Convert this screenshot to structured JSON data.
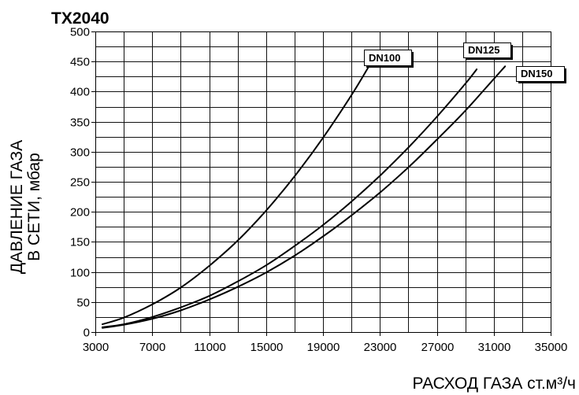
{
  "chart_data": {
    "type": "line",
    "title": "TX2040",
    "xlabel": "РАСХОД ГАЗА ст.м³/ч",
    "ylabel": [
      "ДАВЛЕНИЕ ГАЗА",
      "В СЕТИ, мбар"
    ],
    "xlim": [
      3000,
      35000
    ],
    "ylim": [
      0,
      500
    ],
    "xticks": [
      3000,
      7000,
      11000,
      15000,
      19000,
      23000,
      27000,
      31000,
      35000
    ],
    "yticks": [
      0,
      50,
      100,
      150,
      200,
      250,
      300,
      350,
      400,
      450,
      500
    ],
    "grid": true,
    "legend": "top-right",
    "colors": {
      "line": "#000000",
      "grid": "#111111",
      "background": "#ffffff"
    },
    "series": [
      {
        "name": "DN100",
        "x": [
          3500,
          5000,
          7000,
          9000,
          11000,
          13000,
          15000,
          17000,
          19000,
          21000,
          22200
        ],
        "y": [
          13,
          24,
          46,
          74,
          110,
          152,
          202,
          259,
          323,
          394,
          441
        ]
      },
      {
        "name": "DN125",
        "x": [
          3500,
          5000,
          7000,
          9000,
          11000,
          13000,
          15000,
          17000,
          19000,
          21000,
          23000,
          25000,
          27000,
          29000,
          29800
        ],
        "y": [
          8,
          13,
          25,
          41,
          60,
          84,
          111,
          143,
          178,
          217,
          260,
          307,
          358,
          413,
          437
        ]
      },
      {
        "name": "DN150",
        "x": [
          3500,
          5000,
          7000,
          9000,
          11000,
          13000,
          15000,
          17000,
          19000,
          21000,
          23000,
          25000,
          27000,
          29000,
          31000,
          31800
        ],
        "y": [
          7,
          12,
          22,
          36,
          54,
          75,
          99,
          127,
          159,
          194,
          232,
          274,
          320,
          368,
          421,
          442
        ]
      }
    ]
  }
}
